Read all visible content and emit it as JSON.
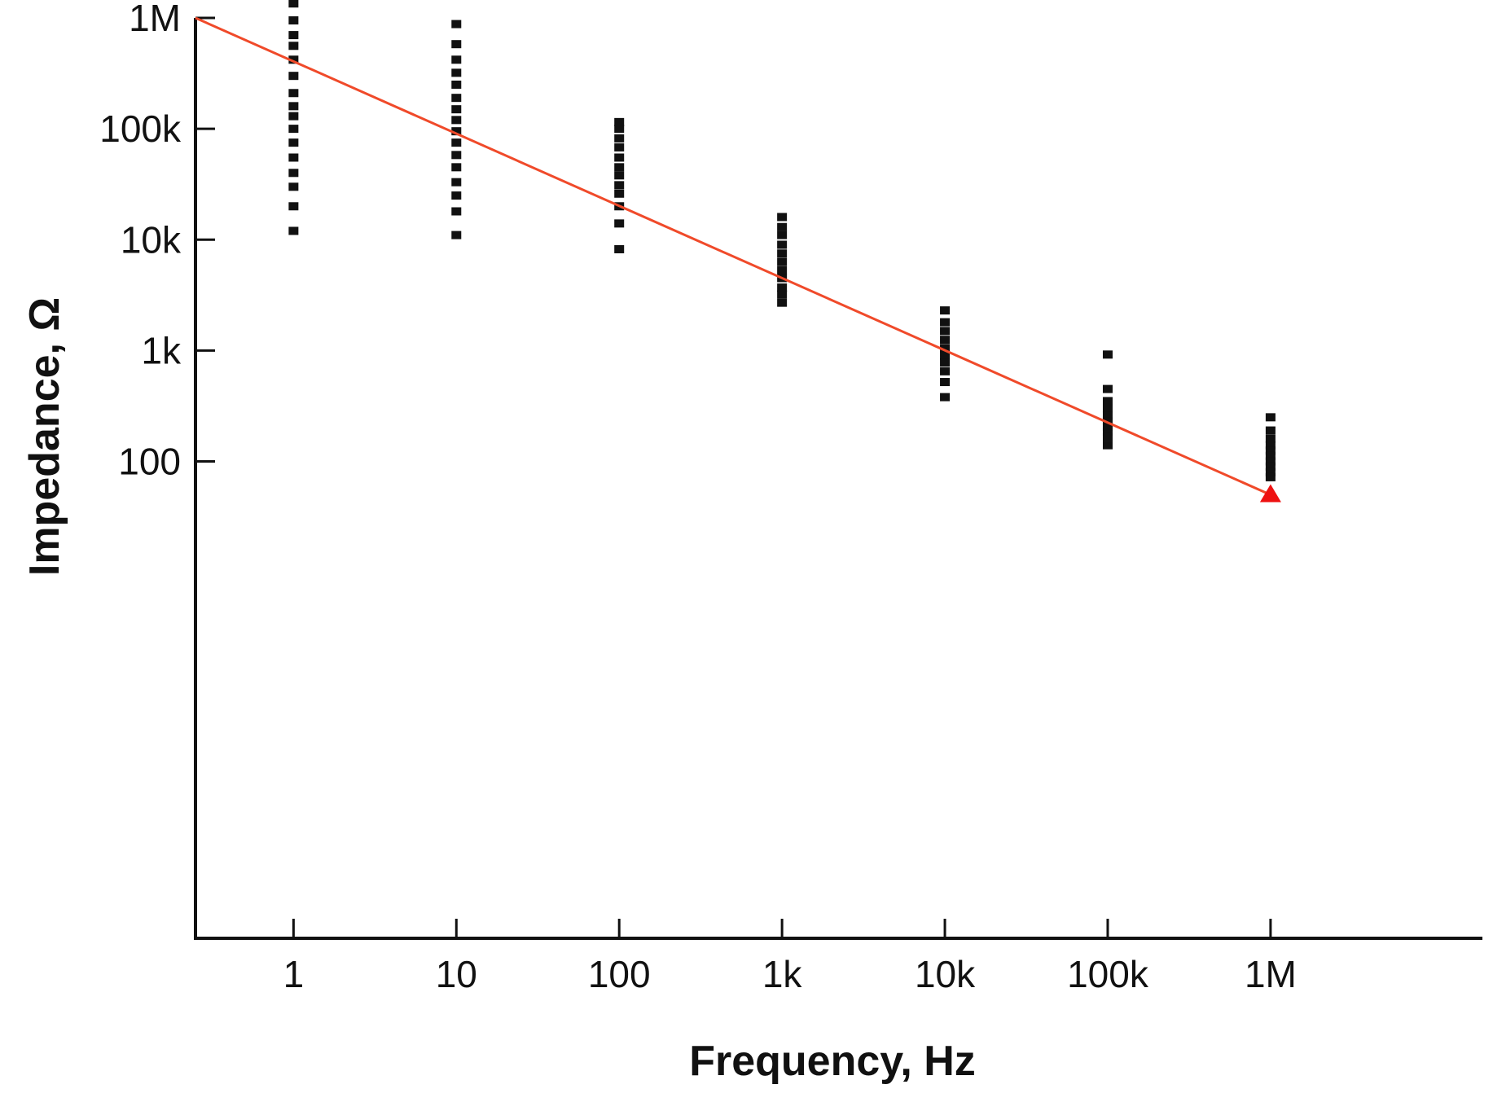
{
  "chart_data": {
    "type": "scatter",
    "title": "",
    "xlabel": "Frequency, Hz",
    "ylabel": "Impedance, Ω",
    "x_scale": "log",
    "y_scale": "log",
    "xlim": [
      0.25,
      20000000
    ],
    "ylim": [
      0.005,
      1000000
    ],
    "x_ticks": [
      {
        "value": 1,
        "label": "1"
      },
      {
        "value": 10,
        "label": "10"
      },
      {
        "value": 100,
        "label": "100"
      },
      {
        "value": 1000,
        "label": "1k"
      },
      {
        "value": 10000,
        "label": "10k"
      },
      {
        "value": 100000,
        "label": "100k"
      },
      {
        "value": 1000000,
        "label": "1M"
      }
    ],
    "y_ticks": [
      {
        "value": 100,
        "label": "100"
      },
      {
        "value": 1000,
        "label": "1k"
      },
      {
        "value": 10000,
        "label": "10k"
      },
      {
        "value": 100000,
        "label": "100k"
      },
      {
        "value": 1000000,
        "label": "1M"
      }
    ],
    "grid": false,
    "legend": "none",
    "colors": {
      "points": "#111111",
      "fit_line": "#f04a2a",
      "end_marker": "#ee1111",
      "axis": "#111111"
    },
    "series": [
      {
        "type": "scatter",
        "marker": "square",
        "points": [
          {
            "x": 1,
            "y": 1350000
          },
          {
            "x": 1,
            "y": 950000
          },
          {
            "x": 1,
            "y": 700000
          },
          {
            "x": 1,
            "y": 560000
          },
          {
            "x": 1,
            "y": 420000
          },
          {
            "x": 1,
            "y": 300000
          },
          {
            "x": 1,
            "y": 210000
          },
          {
            "x": 1,
            "y": 160000
          },
          {
            "x": 1,
            "y": 130000
          },
          {
            "x": 1,
            "y": 100000
          },
          {
            "x": 1,
            "y": 75000
          },
          {
            "x": 1,
            "y": 55000
          },
          {
            "x": 1,
            "y": 40000
          },
          {
            "x": 1,
            "y": 30000
          },
          {
            "x": 1,
            "y": 20000
          },
          {
            "x": 1,
            "y": 12000
          },
          {
            "x": 10,
            "y": 880000
          },
          {
            "x": 10,
            "y": 580000
          },
          {
            "x": 10,
            "y": 420000
          },
          {
            "x": 10,
            "y": 320000
          },
          {
            "x": 10,
            "y": 250000
          },
          {
            "x": 10,
            "y": 190000
          },
          {
            "x": 10,
            "y": 150000
          },
          {
            "x": 10,
            "y": 120000
          },
          {
            "x": 10,
            "y": 95000
          },
          {
            "x": 10,
            "y": 75000
          },
          {
            "x": 10,
            "y": 58000
          },
          {
            "x": 10,
            "y": 45000
          },
          {
            "x": 10,
            "y": 33000
          },
          {
            "x": 10,
            "y": 25000
          },
          {
            "x": 10,
            "y": 18000
          },
          {
            "x": 10,
            "y": 11000
          },
          {
            "x": 100,
            "y": 115000
          },
          {
            "x": 100,
            "y": 100000
          },
          {
            "x": 100,
            "y": 82000
          },
          {
            "x": 100,
            "y": 68000
          },
          {
            "x": 100,
            "y": 55000
          },
          {
            "x": 100,
            "y": 45000
          },
          {
            "x": 100,
            "y": 38000
          },
          {
            "x": 100,
            "y": 31000
          },
          {
            "x": 100,
            "y": 26000
          },
          {
            "x": 100,
            "y": 20000
          },
          {
            "x": 100,
            "y": 14000
          },
          {
            "x": 100,
            "y": 8200
          },
          {
            "x": 1000,
            "y": 16000
          },
          {
            "x": 1000,
            "y": 13000
          },
          {
            "x": 1000,
            "y": 11000
          },
          {
            "x": 1000,
            "y": 9000
          },
          {
            "x": 1000,
            "y": 7500
          },
          {
            "x": 1000,
            "y": 6300
          },
          {
            "x": 1000,
            "y": 5300
          },
          {
            "x": 1000,
            "y": 4500
          },
          {
            "x": 1000,
            "y": 3700
          },
          {
            "x": 1000,
            "y": 3200
          },
          {
            "x": 1000,
            "y": 2700
          },
          {
            "x": 10000,
            "y": 2300
          },
          {
            "x": 10000,
            "y": 1800
          },
          {
            "x": 10000,
            "y": 1500
          },
          {
            "x": 10000,
            "y": 1250
          },
          {
            "x": 10000,
            "y": 1050
          },
          {
            "x": 10000,
            "y": 900
          },
          {
            "x": 10000,
            "y": 780
          },
          {
            "x": 10000,
            "y": 650
          },
          {
            "x": 10000,
            "y": 520
          },
          {
            "x": 10000,
            "y": 380
          },
          {
            "x": 100000,
            "y": 920
          },
          {
            "x": 100000,
            "y": 450
          },
          {
            "x": 100000,
            "y": 350
          },
          {
            "x": 100000,
            "y": 300
          },
          {
            "x": 100000,
            "y": 260
          },
          {
            "x": 100000,
            "y": 230
          },
          {
            "x": 100000,
            "y": 205
          },
          {
            "x": 100000,
            "y": 185
          },
          {
            "x": 100000,
            "y": 165
          },
          {
            "x": 100000,
            "y": 140
          },
          {
            "x": 1000000,
            "y": 250
          },
          {
            "x": 1000000,
            "y": 190
          },
          {
            "x": 1000000,
            "y": 160
          },
          {
            "x": 1000000,
            "y": 140
          },
          {
            "x": 1000000,
            "y": 125
          },
          {
            "x": 1000000,
            "y": 112
          },
          {
            "x": 1000000,
            "y": 100
          },
          {
            "x": 1000000,
            "y": 90
          },
          {
            "x": 1000000,
            "y": 80
          },
          {
            "x": 1000000,
            "y": 72
          }
        ]
      },
      {
        "type": "line",
        "points": [
          {
            "x": 0.25,
            "y": 1000000
          },
          {
            "x": 1000000,
            "y": 50
          }
        ]
      }
    ],
    "end_marker": {
      "shape": "triangle",
      "x": 1000000,
      "y": 50
    }
  }
}
